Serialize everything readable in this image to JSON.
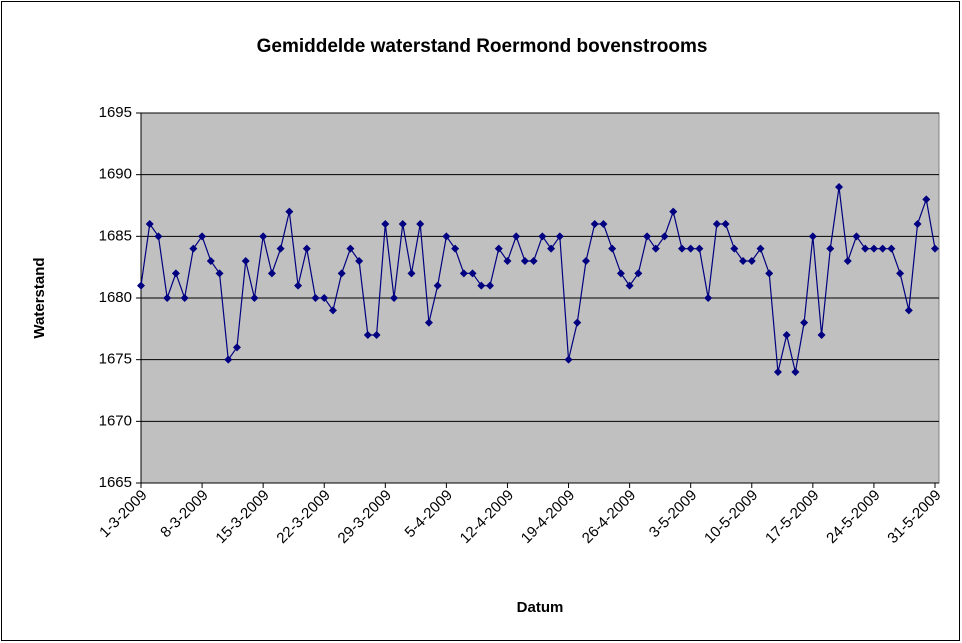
{
  "chart_data": {
    "type": "line",
    "title": "Gemiddelde waterstand Roermond bovenstrooms",
    "x_label": "Datum",
    "y_label": "Waterstand",
    "categories": [
      "1-3-2009",
      null,
      null,
      null,
      null,
      null,
      null,
      "8-3-2009",
      null,
      null,
      null,
      null,
      null,
      null,
      "15-3-2009",
      null,
      null,
      null,
      null,
      null,
      null,
      "22-3-2009",
      null,
      null,
      null,
      null,
      null,
      null,
      "29-3-2009",
      null,
      null,
      null,
      null,
      null,
      null,
      "5-4-2009",
      null,
      null,
      null,
      null,
      null,
      null,
      "12-4-2009",
      null,
      null,
      null,
      null,
      null,
      null,
      "19-4-2009",
      null,
      null,
      null,
      null,
      null,
      null,
      "26-4-2009",
      null,
      null,
      null,
      null,
      null,
      null,
      "3-5-2009",
      null,
      null,
      null,
      null,
      null,
      null,
      "10-5-2009",
      null,
      null,
      null,
      null,
      null,
      null,
      "17-5-2009",
      null,
      null,
      null,
      null,
      null,
      null,
      "24-5-2009",
      null,
      null,
      null,
      null,
      null,
      null,
      "31-5-2009"
    ],
    "series": [
      {
        "color": "#000080",
        "values": [
          1681,
          1686,
          1685,
          1680,
          1682,
          1680,
          1684,
          1685,
          1683,
          1682,
          1675,
          1676,
          1683,
          1680,
          1685,
          1682,
          1684,
          1687,
          1681,
          1684,
          1680,
          1680,
          1679,
          1682,
          1684,
          1683,
          1677,
          1677,
          1686,
          1680,
          1686,
          1682,
          1686,
          1678,
          1681,
          1685,
          1684,
          1682,
          1682,
          1681,
          1681,
          1684,
          1683,
          1685,
          1683,
          1683,
          1685,
          1684,
          1685,
          1675,
          1678,
          1683,
          1686,
          1686,
          1684,
          1682,
          1681,
          1682,
          1685,
          1684,
          1685,
          1687,
          1684,
          1684,
          1684,
          1680,
          1686,
          1686,
          1684,
          1683,
          1683,
          1684,
          1682,
          1674,
          1677,
          1674,
          1678,
          1685,
          1677,
          1684,
          1689,
          1683,
          1685,
          1684,
          1684,
          1684,
          1684,
          1682,
          1679,
          1686,
          1688,
          1684
        ]
      }
    ],
    "ylim": [
      1665,
      1695
    ],
    "yticks": [
      1665,
      1670,
      1675,
      1680,
      1685,
      1690,
      1695
    ],
    "grid": true,
    "plot_background": "#c0c0c0"
  }
}
